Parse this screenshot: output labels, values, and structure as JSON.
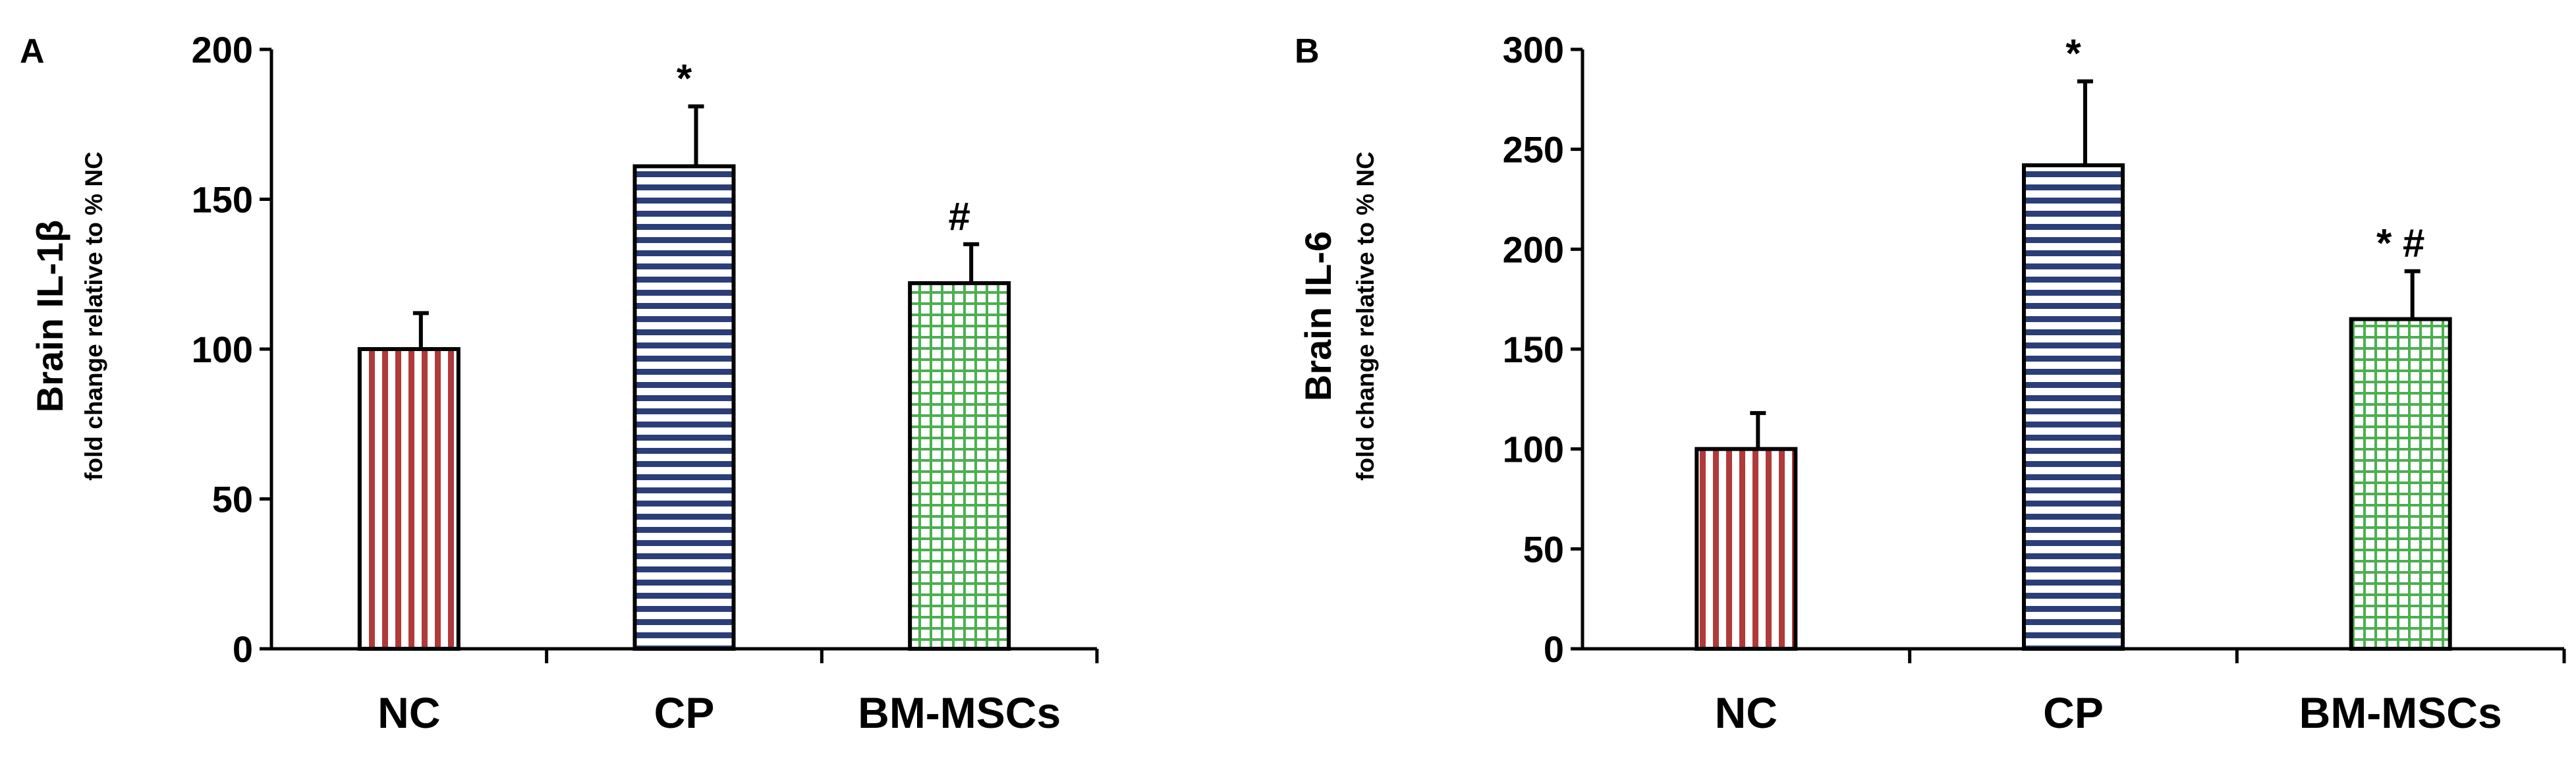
{
  "chart_data": [
    {
      "type": "bar",
      "panel_label": "A",
      "ylabel": "Brain IL-1β",
      "ylabel_sub": "fold change relative to % NC",
      "categories": [
        "NC",
        "CP",
        "BM-MSCs"
      ],
      "values": [
        100,
        161,
        122
      ],
      "errors": [
        12,
        20,
        13
      ],
      "significance": [
        "",
        "*",
        "#"
      ],
      "yticks": [
        "0",
        "50",
        "100",
        "150",
        "200"
      ],
      "ylim": [
        0,
        200
      ],
      "patterns": [
        "vertical-stripes",
        "horizontal-stripes",
        "grid"
      ],
      "colors": [
        "#b03a3a",
        "#2b3e7a",
        "#4caf50"
      ],
      "grid": false
    },
    {
      "type": "bar",
      "panel_label": "B",
      "ylabel": "Brain IL-6",
      "ylabel_sub": "fold change relative to % NC",
      "categories": [
        "NC",
        "CP",
        "BM-MSCs"
      ],
      "values": [
        100,
        242,
        165
      ],
      "errors": [
        18,
        42,
        24
      ],
      "significance": [
        "",
        "*",
        "* #"
      ],
      "yticks": [
        "0",
        "50",
        "100",
        "150",
        "200",
        "250",
        "300"
      ],
      "ylim": [
        0,
        300
      ],
      "patterns": [
        "vertical-stripes",
        "horizontal-stripes",
        "grid"
      ],
      "colors": [
        "#b03a3a",
        "#2b3e7a",
        "#4caf50"
      ],
      "grid": false
    }
  ]
}
